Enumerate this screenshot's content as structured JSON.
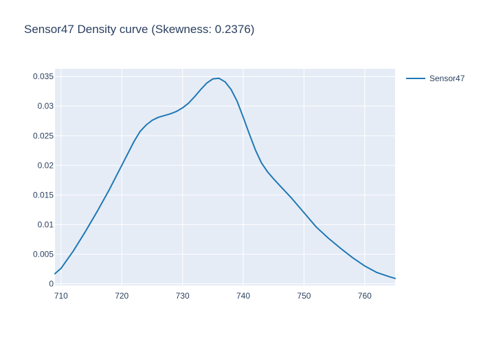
{
  "chart_data": {
    "type": "line",
    "title": "Sensor47 Density curve (Skewness: 0.2376)",
    "xlabel": "",
    "ylabel": "",
    "xlim": [
      709,
      765
    ],
    "ylim": [
      -0.0003,
      0.0363
    ],
    "x_ticks": [
      710,
      720,
      730,
      740,
      750,
      760
    ],
    "y_ticks": [
      0,
      0.005,
      0.01,
      0.015,
      0.02,
      0.025,
      0.03,
      0.035
    ],
    "y_tick_labels": [
      "0",
      "0.005",
      "0.01",
      "0.015",
      "0.02",
      "0.025",
      "0.03",
      "0.035"
    ],
    "grid": true,
    "legend": "top-right",
    "colors": {
      "plot_background": "#e5ecf6",
      "grid": "#ffffff",
      "line": "#1f77b4",
      "text": "#2a3f5f"
    },
    "series": [
      {
        "name": "Sensor47",
        "x": [
          709,
          710,
          712,
          714,
          716,
          718,
          720,
          722,
          723,
          724,
          725,
          726,
          728,
          729,
          730,
          731,
          732,
          733,
          734,
          735,
          736,
          737,
          738,
          739,
          740,
          741,
          742,
          743,
          744,
          745,
          746,
          748,
          750,
          752,
          754,
          756,
          758,
          760,
          762,
          764,
          765
        ],
        "y": [
          0.0017,
          0.0026,
          0.0055,
          0.0088,
          0.0123,
          0.016,
          0.02,
          0.024,
          0.0257,
          0.0268,
          0.0276,
          0.0281,
          0.0287,
          0.0291,
          0.0297,
          0.0305,
          0.0316,
          0.0328,
          0.0339,
          0.0346,
          0.0347,
          0.0341,
          0.0328,
          0.0308,
          0.0281,
          0.0253,
          0.0226,
          0.0204,
          0.0189,
          0.0177,
          0.0166,
          0.0144,
          0.012,
          0.0096,
          0.0077,
          0.006,
          0.0044,
          0.003,
          0.0019,
          0.0012,
          0.0009
        ]
      }
    ]
  }
}
